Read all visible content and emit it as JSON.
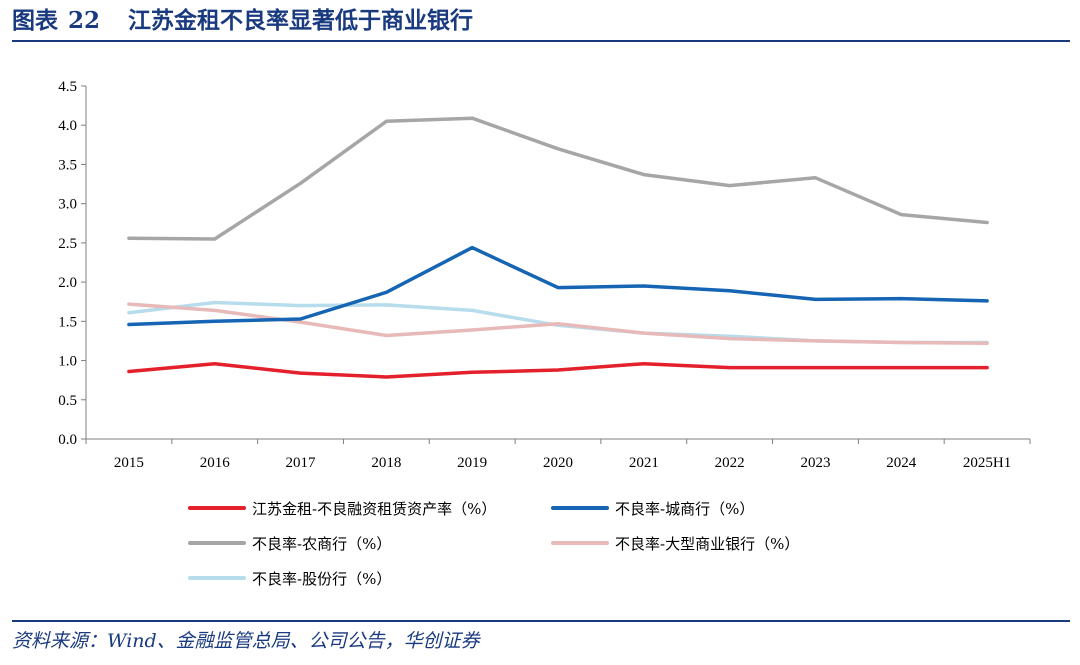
{
  "header": {
    "label": "图表",
    "number": "22",
    "title": "江苏金租不良率显著低于商业银行"
  },
  "source": "资料来源：Wind、金融监管总局、公司公告，华创证券",
  "chart_data": {
    "type": "line",
    "categories": [
      "2015",
      "2016",
      "2017",
      "2018",
      "2019",
      "2020",
      "2021",
      "2022",
      "2023",
      "2024",
      "2025H1"
    ],
    "ylim": [
      0,
      4.5
    ],
    "yticks": [
      "0.0",
      "0.5",
      "1.0",
      "1.5",
      "2.0",
      "2.5",
      "3.0",
      "3.5",
      "4.0",
      "4.5"
    ],
    "legend_position": "bottom",
    "grid": false,
    "series": [
      {
        "name": "江苏金租-不良融资租赁资产率（%）",
        "color": "#e3202b",
        "values": [
          0.86,
          0.96,
          0.84,
          0.79,
          0.85,
          0.88,
          0.96,
          0.91,
          0.91,
          0.91,
          0.91
        ]
      },
      {
        "name": "不良率-城商行（%）",
        "color": "#1565b4",
        "values": [
          1.46,
          1.5,
          1.53,
          1.87,
          2.44,
          1.93,
          1.95,
          1.89,
          1.78,
          1.79,
          1.76
        ]
      },
      {
        "name": "不良率-农商行（%）",
        "color": "#a6a6a6",
        "values": [
          2.56,
          2.55,
          3.26,
          4.05,
          4.09,
          3.7,
          3.37,
          3.23,
          3.33,
          2.86,
          2.76
        ]
      },
      {
        "name": "不良率-大型商业银行（%）",
        "color": "#e8b9b9",
        "values": [
          1.72,
          1.64,
          1.49,
          1.32,
          1.39,
          1.47,
          1.35,
          1.28,
          1.25,
          1.23,
          1.22
        ]
      },
      {
        "name": "不良率-股份行（%）",
        "color": "#b7dcec",
        "values": [
          1.61,
          1.74,
          1.7,
          1.71,
          1.64,
          1.45,
          1.35,
          1.31,
          1.25,
          1.23,
          1.23
        ]
      }
    ]
  }
}
